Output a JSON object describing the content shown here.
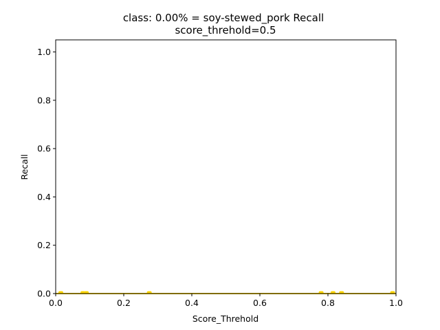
{
  "chart_data": {
    "type": "line",
    "title_line1": "class: 0.00% = soy-stewed_pork Recall",
    "title_line2": "score_threhold=0.5",
    "xlabel": "Score_Threhold",
    "ylabel": "Recall",
    "xlim": [
      0.0,
      1.0
    ],
    "ylim": [
      0.0,
      1.05
    ],
    "xticks": [
      "0.0",
      "0.2",
      "0.4",
      "0.6",
      "0.8",
      "1.0"
    ],
    "yticks": [
      "0.0",
      "0.2",
      "0.4",
      "0.6",
      "0.8",
      "1.0"
    ],
    "grid": false,
    "series": [
      {
        "color": "#ffd700",
        "x": [
          0.0,
          0.015,
          0.08,
          0.09,
          0.275,
          0.78,
          0.815,
          0.84,
          0.99,
          1.0
        ],
        "y": [
          0.0,
          0.0,
          0.0,
          0.0,
          0.0,
          0.0,
          0.0,
          0.0,
          0.0,
          0.0
        ]
      }
    ],
    "markers_x": [
      0.015,
      0.08,
      0.09,
      0.275,
      0.78,
      0.815,
      0.84,
      0.99
    ]
  }
}
